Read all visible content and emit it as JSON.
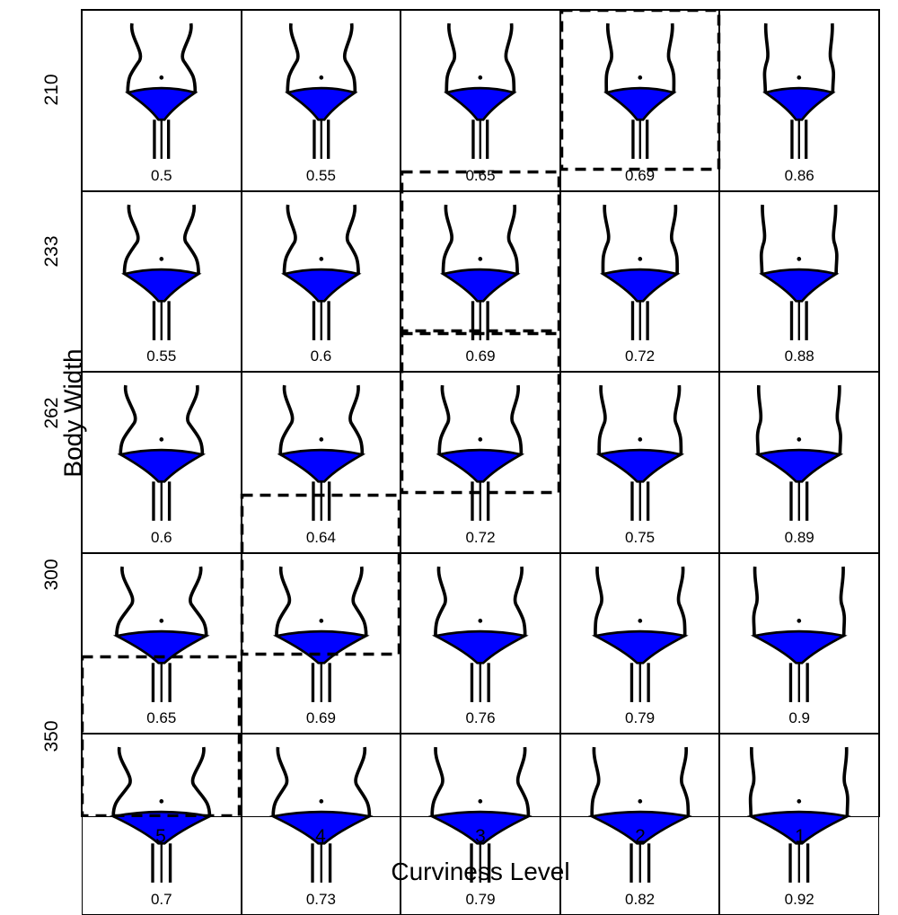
{
  "chart": {
    "type": "grid-matrix",
    "x_axis_title": "Curviness Level",
    "y_axis_title": "Body Width",
    "x_labels": [
      "5",
      "4",
      "3",
      "2",
      "1"
    ],
    "y_labels": [
      "210",
      "233",
      "262",
      "300",
      "350"
    ],
    "label_fontsize": 21,
    "title_fontsize": 28,
    "value_fontsize": 17,
    "grid_color": "#000000",
    "background_color": "#ffffff",
    "figure_fill_color": "#0000ff",
    "figure_stroke_color": "#000000",
    "dashed_border_color": "#000000",
    "dashed_border_width": 3.5,
    "dashed_pattern": "12,8",
    "rows": [
      {
        "body_width": 210,
        "cells": [
          {
            "curviness": 5,
            "value": "0.5",
            "width_scale": 0.7,
            "curve": 0.5,
            "dashed": false
          },
          {
            "curviness": 4,
            "value": "0.55",
            "width_scale": 0.7,
            "curve": 0.4,
            "dashed": false
          },
          {
            "curviness": 3,
            "value": "0.65",
            "width_scale": 0.7,
            "curve": 0.3,
            "dashed": false
          },
          {
            "curviness": 2,
            "value": "0.69",
            "width_scale": 0.7,
            "curve": 0.18,
            "dashed": true
          },
          {
            "curviness": 1,
            "value": "0.86",
            "width_scale": 0.7,
            "curve": 0.06,
            "dashed": false
          }
        ]
      },
      {
        "body_width": 233,
        "cells": [
          {
            "curviness": 5,
            "value": "0.55",
            "width_scale": 0.77,
            "curve": 0.5,
            "dashed": false
          },
          {
            "curviness": 4,
            "value": "0.6",
            "width_scale": 0.77,
            "curve": 0.4,
            "dashed": false
          },
          {
            "curviness": 3,
            "value": "0.69",
            "width_scale": 0.77,
            "curve": 0.3,
            "dashed": true
          },
          {
            "curviness": 2,
            "value": "0.72",
            "width_scale": 0.77,
            "curve": 0.18,
            "dashed": false
          },
          {
            "curviness": 1,
            "value": "0.88",
            "width_scale": 0.77,
            "curve": 0.06,
            "dashed": false
          }
        ]
      },
      {
        "body_width": 262,
        "cells": [
          {
            "curviness": 5,
            "value": "0.6",
            "width_scale": 0.85,
            "curve": 0.5,
            "dashed": false
          },
          {
            "curviness": 4,
            "value": "0.64",
            "width_scale": 0.85,
            "curve": 0.4,
            "dashed": false
          },
          {
            "curviness": 3,
            "value": "0.72",
            "width_scale": 0.85,
            "curve": 0.3,
            "dashed": true
          },
          {
            "curviness": 2,
            "value": "0.75",
            "width_scale": 0.85,
            "curve": 0.18,
            "dashed": false
          },
          {
            "curviness": 1,
            "value": "0.89",
            "width_scale": 0.85,
            "curve": 0.06,
            "dashed": false
          }
        ]
      },
      {
        "body_width": 300,
        "cells": [
          {
            "curviness": 5,
            "value": "0.65",
            "width_scale": 0.93,
            "curve": 0.5,
            "dashed": false
          },
          {
            "curviness": 4,
            "value": "0.69",
            "width_scale": 0.93,
            "curve": 0.4,
            "dashed": true
          },
          {
            "curviness": 3,
            "value": "0.76",
            "width_scale": 0.93,
            "curve": 0.3,
            "dashed": false
          },
          {
            "curviness": 2,
            "value": "0.79",
            "width_scale": 0.93,
            "curve": 0.18,
            "dashed": false
          },
          {
            "curviness": 1,
            "value": "0.9",
            "width_scale": 0.93,
            "curve": 0.06,
            "dashed": false
          }
        ]
      },
      {
        "body_width": 350,
        "cells": [
          {
            "curviness": 5,
            "value": "0.7",
            "width_scale": 1.0,
            "curve": 0.5,
            "dashed": true
          },
          {
            "curviness": 4,
            "value": "0.73",
            "width_scale": 1.0,
            "curve": 0.4,
            "dashed": false
          },
          {
            "curviness": 3,
            "value": "0.79",
            "width_scale": 1.0,
            "curve": 0.3,
            "dashed": false
          },
          {
            "curviness": 2,
            "value": "0.82",
            "width_scale": 1.0,
            "curve": 0.18,
            "dashed": false
          },
          {
            "curviness": 1,
            "value": "0.92",
            "width_scale": 1.0,
            "curve": 0.06,
            "dashed": false
          }
        ]
      }
    ]
  }
}
